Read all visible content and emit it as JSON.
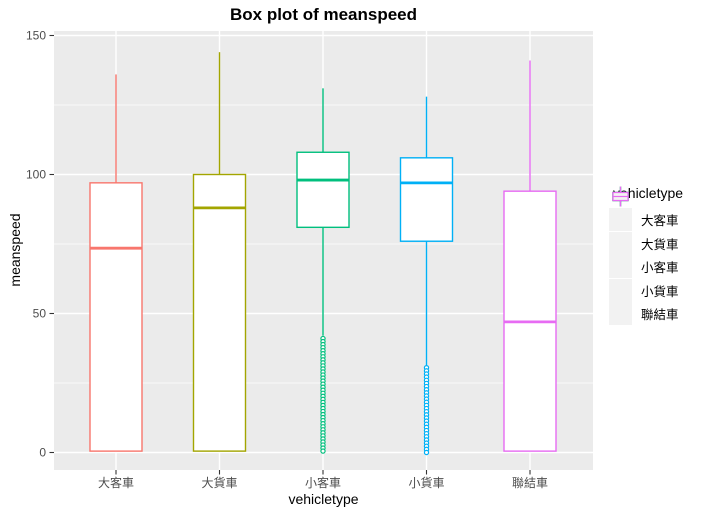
{
  "chart_data": {
    "type": "boxplot",
    "title": "Box plot of meanspeed",
    "xlabel": "vehicletype",
    "ylabel": "meanspeed",
    "categories": [
      "大客車",
      "大貨車",
      "小客車",
      "小貨車",
      "聯結車"
    ],
    "ylim": [
      0,
      150
    ],
    "yticks": [
      0,
      50,
      100,
      150
    ],
    "yticks_minor": [
      25,
      75,
      125
    ],
    "grid": true,
    "panel_background": "#EBEBEB",
    "gridline_color": "#FFFFFF",
    "tick_color": "#333333",
    "tick_label_color": "#4D4D4D",
    "legend": {
      "title": "vehicletype",
      "position": "right",
      "key_background": "#F2F2F2",
      "entries": [
        {
          "label": "大客車",
          "color": "#F8766D"
        },
        {
          "label": "大貨車",
          "color": "#A3A500"
        },
        {
          "label": "小客車",
          "color": "#00BF7D"
        },
        {
          "label": "小貨車",
          "color": "#00B0F6"
        },
        {
          "label": "聯結車",
          "color": "#E76BF3"
        }
      ]
    },
    "series": [
      {
        "name": "大客車",
        "color": "#F8766D",
        "whisker_low": 0.5,
        "q1": 0.5,
        "median": 73.5,
        "q3": 97,
        "whisker_high": 136,
        "outliers": null
      },
      {
        "name": "大貨車",
        "color": "#A3A500",
        "whisker_low": 0.5,
        "q1": 0.5,
        "median": 88,
        "q3": 100,
        "whisker_high": 144,
        "outliers": null
      },
      {
        "name": "小客車",
        "color": "#00BF7D",
        "whisker_low": 42,
        "q1": 81,
        "median": 98,
        "q3": 108,
        "whisker_high": 131,
        "outliers": {
          "min": 0.5,
          "max": 41,
          "count": 38
        }
      },
      {
        "name": "小貨車",
        "color": "#00B0F6",
        "whisker_low": 31,
        "q1": 76,
        "median": 97,
        "q3": 106,
        "whisker_high": 128,
        "outliers": {
          "min": 0,
          "max": 30.5,
          "count": 28
        }
      },
      {
        "name": "聯結車",
        "color": "#E76BF3",
        "whisker_low": 0.5,
        "q1": 0.5,
        "median": 47,
        "q3": 94,
        "whisker_high": 141,
        "outliers": null
      }
    ]
  }
}
